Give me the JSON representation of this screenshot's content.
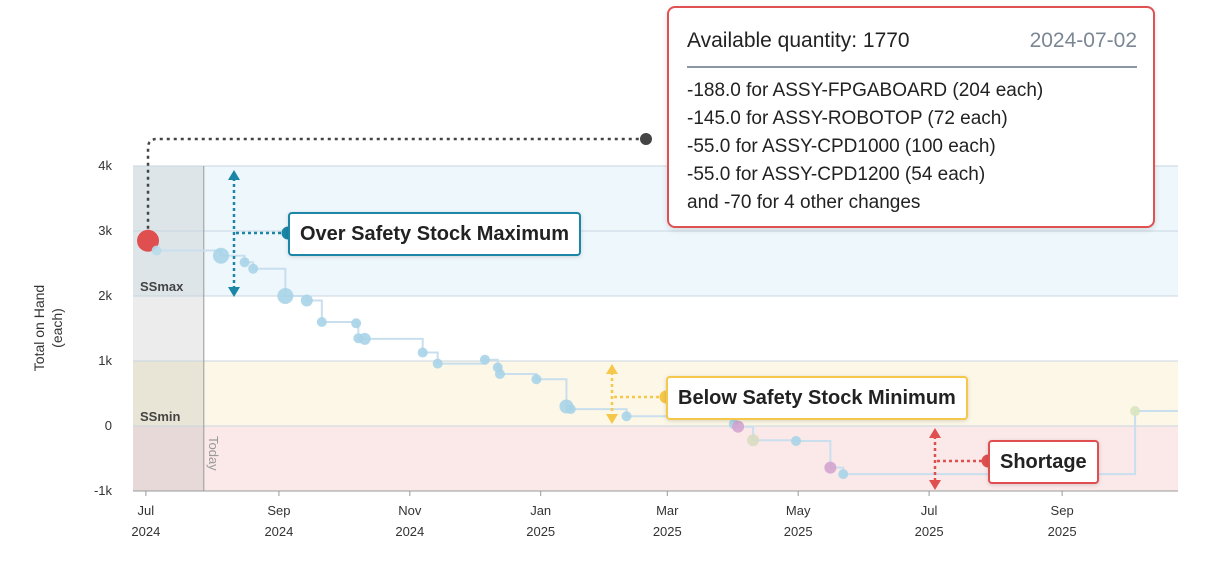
{
  "chart_data": {
    "type": "line",
    "ylabel": "Total on Hand\n(each)",
    "ylim": [
      -1000,
      4000
    ],
    "y_ticks": [
      {
        "value": 4000,
        "label": "4k"
      },
      {
        "value": 3000,
        "label": "3k"
      },
      {
        "value": 2000,
        "label": "2k"
      },
      {
        "value": 1000,
        "label": "1k"
      },
      {
        "value": 0,
        "label": "0"
      },
      {
        "value": -1000,
        "label": "-1k"
      }
    ],
    "x_range": [
      "2024-06-25",
      "2025-10-25"
    ],
    "x_ticks": [
      {
        "date": "2024-07-01",
        "label1": "Jul",
        "label2": "2024"
      },
      {
        "date": "2024-09-01",
        "label1": "Sep",
        "label2": "2024"
      },
      {
        "date": "2024-11-01",
        "label1": "Nov",
        "label2": "2024"
      },
      {
        "date": "2025-01-01",
        "label1": "Jan",
        "label2": "2025"
      },
      {
        "date": "2025-03-01",
        "label1": "Mar",
        "label2": "2025"
      },
      {
        "date": "2025-05-01",
        "label1": "May",
        "label2": "2025"
      },
      {
        "date": "2025-07-01",
        "label1": "Jul",
        "label2": "2025"
      },
      {
        "date": "2025-09-01",
        "label1": "Sep",
        "label2": "2025"
      }
    ],
    "today": "2024-07-28",
    "today_label": "Today",
    "safety_stock_max": 2000,
    "safety_stock_min": 0,
    "zone_labels": {
      "ssmax": "SSmax",
      "ssmin": "SSmin"
    },
    "series": [
      {
        "points": [
          {
            "date": "2024-07-02",
            "value": 2850,
            "color": "#e04f4f",
            "size": 11
          },
          {
            "date": "2024-07-06",
            "value": 2700,
            "color": "#b9dcea",
            "size": 5
          },
          {
            "date": "2024-08-05",
            "value": 2620,
            "color": "#a8d4e8",
            "size": 8
          },
          {
            "date": "2024-08-16",
            "value": 2520,
            "color": "#a8d4e8",
            "size": 5
          },
          {
            "date": "2024-08-20",
            "value": 2420,
            "color": "#a8d4e8",
            "size": 5
          },
          {
            "date": "2024-09-04",
            "value": 2000,
            "color": "#a8d4e8",
            "size": 8
          },
          {
            "date": "2024-09-14",
            "value": 1930,
            "color": "#a8d4e8",
            "size": 6
          },
          {
            "date": "2024-09-21",
            "value": 1600,
            "color": "#a8d4e8",
            "size": 5
          },
          {
            "date": "2024-10-07",
            "value": 1580,
            "color": "#a8d4e8",
            "size": 5
          },
          {
            "date": "2024-10-08",
            "value": 1350,
            "color": "#a8d4e8",
            "size": 5
          },
          {
            "date": "2024-10-11",
            "value": 1340,
            "color": "#a8d4e8",
            "size": 6
          },
          {
            "date": "2024-11-07",
            "value": 1130,
            "color": "#a8d4e8",
            "size": 5
          },
          {
            "date": "2024-11-14",
            "value": 960,
            "color": "#a8d4e8",
            "size": 5
          },
          {
            "date": "2024-12-06",
            "value": 1020,
            "color": "#a8d4e8",
            "size": 5
          },
          {
            "date": "2024-12-12",
            "value": 900,
            "color": "#a8d4e8",
            "size": 5
          },
          {
            "date": "2024-12-13",
            "value": 800,
            "color": "#a8d4e8",
            "size": 5
          },
          {
            "date": "2024-12-30",
            "value": 720,
            "color": "#a8d4e8",
            "size": 5
          },
          {
            "date": "2025-01-13",
            "value": 300,
            "color": "#a8d4e8",
            "size": 7
          },
          {
            "date": "2025-01-15",
            "value": 260,
            "color": "#a8d4e8",
            "size": 5
          },
          {
            "date": "2025-02-10",
            "value": 150,
            "color": "#a8d4e8",
            "size": 5
          },
          {
            "date": "2025-04-01",
            "value": 30,
            "color": "#a8d4e8",
            "size": 5
          },
          {
            "date": "2025-04-03",
            "value": -10,
            "color": "#d3a4cf",
            "size": 6
          },
          {
            "date": "2025-04-10",
            "value": -220,
            "color": "#d8dbc0",
            "size": 6
          },
          {
            "date": "2025-04-30",
            "value": -230,
            "color": "#a8d4e8",
            "size": 5
          },
          {
            "date": "2025-05-16",
            "value": -640,
            "color": "#d3a4cf",
            "size": 6
          },
          {
            "date": "2025-05-22",
            "value": -740,
            "color": "#a8d4e8",
            "size": 5
          },
          {
            "date": "2025-10-05",
            "value": 230,
            "color": "#d8e6c0",
            "size": 5
          }
        ],
        "end": {
          "date": "2025-10-25",
          "value": 230
        }
      }
    ],
    "legend": "none",
    "grid": true
  },
  "callouts": {
    "over": {
      "label": "Over Safety Stock Maximum",
      "color": "#1b86a6"
    },
    "below": {
      "label": "Below Safety Stock Minimum",
      "color": "#f5c84c"
    },
    "shortage": {
      "label": "Shortage",
      "color": "#e04f4f"
    }
  },
  "tooltip": {
    "title": "Available quantity: 1770",
    "date": "2024-07-02",
    "lines": [
      "-188.0 for ASSY-FPGABOARD (204 each)",
      "-145.0 for ASSY-ROBOTOP (72 each)",
      "-55.0 for ASSY-CPD1000 (100 each)",
      "-55.0 for ASSY-CPD1200 (54 each)",
      "and -70 for 4 other changes"
    ],
    "border_color": "#e05252"
  }
}
